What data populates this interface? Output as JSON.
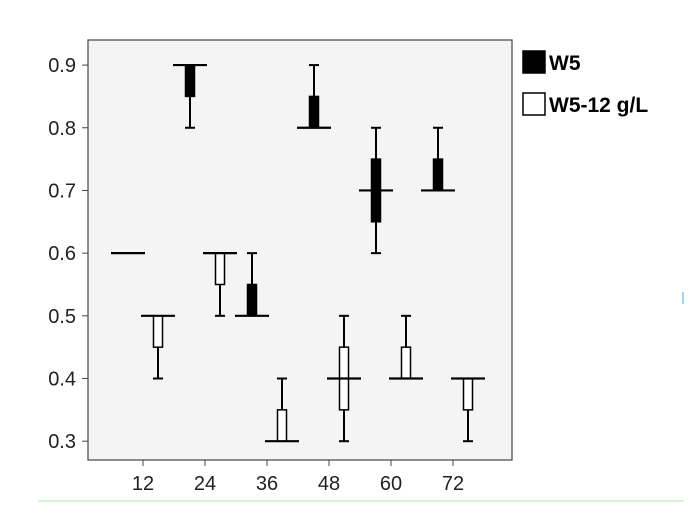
{
  "chart_data": {
    "type": "boxplot",
    "title": "",
    "xlabel": "",
    "ylabel": "",
    "categories": [
      "12",
      "24",
      "36",
      "48",
      "60",
      "72"
    ],
    "ylim": [
      0.27,
      0.94
    ],
    "yticks": [
      "0.3",
      "0.4",
      "0.5",
      "0.6",
      "0.7",
      "0.8",
      "0.9"
    ],
    "grid": false,
    "legend_position": "right-top",
    "plot_background": "#f4f4f4",
    "series": [
      {
        "name": "W5",
        "fill": "#000000",
        "boxes": [
          {
            "category": "12",
            "whisker_low": 0.6,
            "q1": 0.6,
            "median": 0.6,
            "q3": 0.6,
            "whisker_high": 0.6
          },
          {
            "category": "24",
            "whisker_low": 0.8,
            "q1": 0.85,
            "median": 0.9,
            "q3": 0.9,
            "whisker_high": 0.9
          },
          {
            "category": "36",
            "whisker_low": 0.5,
            "q1": 0.5,
            "median": 0.5,
            "q3": 0.55,
            "whisker_high": 0.6
          },
          {
            "category": "48",
            "whisker_low": 0.8,
            "q1": 0.8,
            "median": 0.8,
            "q3": 0.85,
            "whisker_high": 0.9
          },
          {
            "category": "60",
            "whisker_low": 0.6,
            "q1": 0.65,
            "median": 0.7,
            "q3": 0.75,
            "whisker_high": 0.8
          },
          {
            "category": "72",
            "whisker_low": 0.7,
            "q1": 0.7,
            "median": 0.7,
            "q3": 0.75,
            "whisker_high": 0.8
          }
        ]
      },
      {
        "name": "W5-12 g/L",
        "fill": "#ffffff",
        "boxes": [
          {
            "category": "12",
            "whisker_low": 0.4,
            "q1": 0.45,
            "median": 0.5,
            "q3": 0.5,
            "whisker_high": 0.5
          },
          {
            "category": "24",
            "whisker_low": 0.5,
            "q1": 0.55,
            "median": 0.6,
            "q3": 0.6,
            "whisker_high": 0.6
          },
          {
            "category": "36",
            "whisker_low": 0.3,
            "q1": 0.3,
            "median": 0.3,
            "q3": 0.35,
            "whisker_high": 0.4
          },
          {
            "category": "48",
            "whisker_low": 0.3,
            "q1": 0.35,
            "median": 0.4,
            "q3": 0.45,
            "whisker_high": 0.5
          },
          {
            "category": "60",
            "whisker_low": 0.4,
            "q1": 0.4,
            "median": 0.4,
            "q3": 0.45,
            "whisker_high": 0.5
          },
          {
            "category": "72",
            "whisker_low": 0.3,
            "q1": 0.35,
            "median": 0.4,
            "q3": 0.4,
            "whisker_high": 0.4
          }
        ]
      }
    ]
  }
}
